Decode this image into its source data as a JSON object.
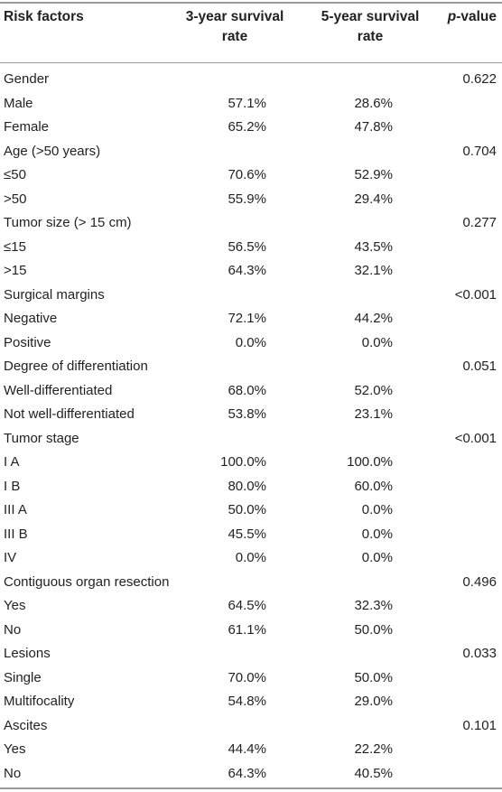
{
  "header": {
    "risk_factors": "Risk factors",
    "three_year": [
      "3-year survival",
      "rate"
    ],
    "five_year": [
      "5-year survival",
      "rate"
    ],
    "p_value_italic": "p",
    "p_value_rest": "-value"
  },
  "rows": [
    {
      "factor": "Gender",
      "y3": "",
      "y5": "",
      "p": "0.622"
    },
    {
      "factor": "Male",
      "y3": "57.1%",
      "y5": "28.6%",
      "p": ""
    },
    {
      "factor": "Female",
      "y3": "65.2%",
      "y5": "47.8%",
      "p": ""
    },
    {
      "factor": "Age (>50 years)",
      "y3": "",
      "y5": "",
      "p": "0.704"
    },
    {
      "factor": "≤50",
      "y3": "70.6%",
      "y5": "52.9%",
      "p": ""
    },
    {
      "factor": ">50",
      "y3": "55.9%",
      "y5": "29.4%",
      "p": ""
    },
    {
      "factor": "Tumor size (> 15 cm)",
      "y3": "",
      "y5": "",
      "p": "0.277"
    },
    {
      "factor": "≤15",
      "y3": "56.5%",
      "y5": "43.5%",
      "p": ""
    },
    {
      "factor": ">15",
      "y3": "64.3%",
      "y5": "32.1%",
      "p": ""
    },
    {
      "factor": "Surgical margins",
      "y3": "",
      "y5": "",
      "p": "<0.001"
    },
    {
      "factor": "Negative",
      "y3": "72.1%",
      "y5": "44.2%",
      "p": ""
    },
    {
      "factor": "Positive",
      "y3": "0.0%",
      "y5": "0.0%",
      "p": ""
    },
    {
      "factor": "Degree of differentiation",
      "y3": "",
      "y5": "",
      "p": "0.051"
    },
    {
      "factor": "Well-differentiated",
      "y3": "68.0%",
      "y5": "52.0%",
      "p": ""
    },
    {
      "factor": "Not well-differentiated",
      "y3": "53.8%",
      "y5": "23.1%",
      "p": ""
    },
    {
      "factor": "Tumor stage",
      "y3": "",
      "y5": "",
      "p": "<0.001"
    },
    {
      "factor": "I A",
      "y3": "100.0%",
      "y5": "100.0%",
      "p": ""
    },
    {
      "factor": "I B",
      "y3": "80.0%",
      "y5": "60.0%",
      "p": ""
    },
    {
      "factor": "III A",
      "y3": "50.0%",
      "y5": "0.0%",
      "p": ""
    },
    {
      "factor": "III B",
      "y3": "45.5%",
      "y5": "0.0%",
      "p": ""
    },
    {
      "factor": "IV",
      "y3": "0.0%",
      "y5": "0.0%",
      "p": ""
    },
    {
      "factor": "Contiguous organ resection",
      "y3": "",
      "y5": "",
      "p": "0.496"
    },
    {
      "factor": "Yes",
      "y3": "64.5%",
      "y5": "32.3%",
      "p": ""
    },
    {
      "factor": "No",
      "y3": "61.1%",
      "y5": "50.0%",
      "p": ""
    },
    {
      "factor": "Lesions",
      "y3": "",
      "y5": "",
      "p": "0.033"
    },
    {
      "factor": "Single",
      "y3": "70.0%",
      "y5": "50.0%",
      "p": ""
    },
    {
      "factor": "Multifocality",
      "y3": "54.8%",
      "y5": "29.0%",
      "p": ""
    },
    {
      "factor": "Ascites",
      "y3": "",
      "y5": "",
      "p": "0.101"
    },
    {
      "factor": "Yes",
      "y3": "44.4%",
      "y5": "22.2%",
      "p": ""
    },
    {
      "factor": "No",
      "y3": "64.3%",
      "y5": "40.5%",
      "p": ""
    }
  ]
}
